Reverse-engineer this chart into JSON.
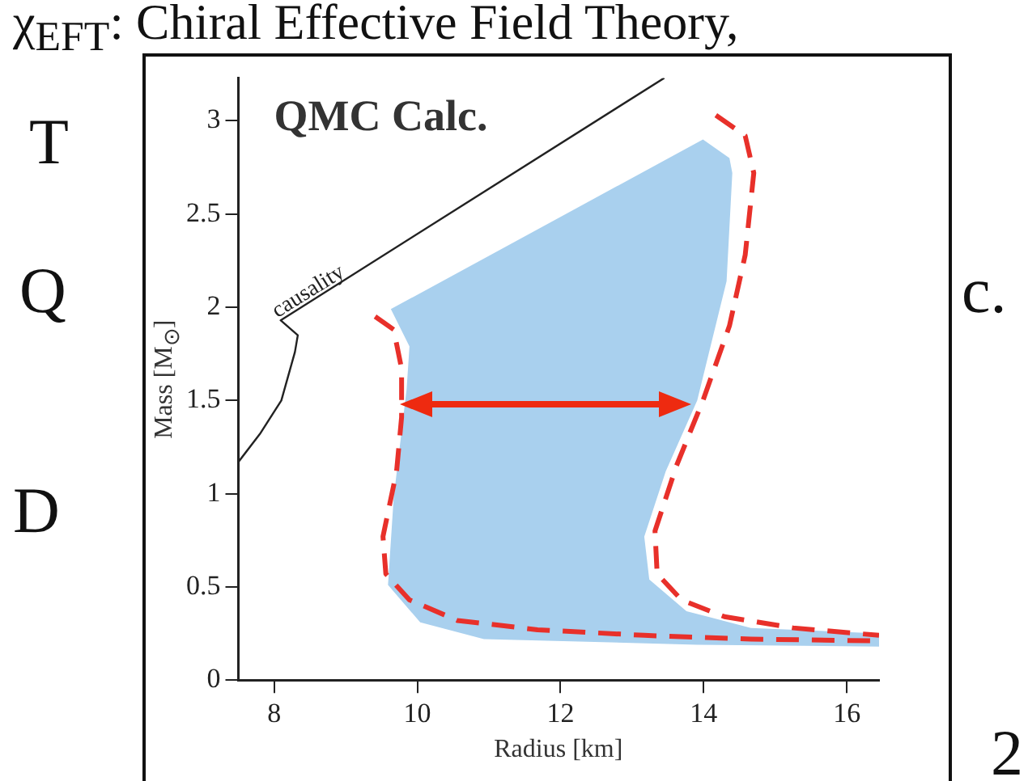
{
  "chart_data": {
    "type": "line",
    "title": "QMC Calc.",
    "xlabel": "Radius [km]",
    "ylabel": "Mass [M$_{⊙}$]",
    "xlim": [
      7.5,
      16.45
    ],
    "xticks": [
      8,
      10,
      12,
      14,
      16
    ],
    "ylim": [
      0,
      3.23
    ],
    "yticks": [
      0,
      0.5,
      1,
      1.5,
      2,
      2.5,
      3
    ],
    "grid": false,
    "legend": false,
    "marker": "none",
    "series": [
      {
        "type": "area",
        "color": "#a9d0ee",
        "x": [
          9.63,
          13.99,
          14.36,
          14.4,
          14.32,
          13.91,
          13.47,
          13.17,
          13.24,
          13.76,
          14.66,
          16.45,
          16.45,
          13.91,
          10.93,
          10.04,
          9.59,
          9.67,
          9.85,
          9.89,
          9.63
        ],
        "values": [
          1.99,
          2.9,
          2.8,
          2.72,
          2.14,
          1.5,
          1.12,
          0.77,
          0.54,
          0.37,
          0.28,
          0.25,
          0.18,
          0.19,
          0.22,
          0.31,
          0.51,
          0.98,
          1.56,
          1.79,
          1.99
        ]
      },
      {
        "color": "#e8302a",
        "line_style": "dashed",
        "x": [
          9.41,
          9.67,
          9.78,
          9.78,
          9.71,
          9.52,
          9.56,
          9.89,
          10.56,
          11.68,
          13.17,
          14.66,
          16.45
        ],
        "values": [
          1.95,
          1.88,
          1.67,
          1.41,
          1.12,
          0.77,
          0.57,
          0.43,
          0.32,
          0.27,
          0.24,
          0.22,
          0.21
        ]
      },
      {
        "color": "#e8302a",
        "line_style": "dashed",
        "x": [
          14.17,
          14.58,
          14.7,
          14.58,
          14.36,
          13.99,
          13.62,
          13.32,
          13.35,
          13.69,
          14.29,
          15.25,
          16.45
        ],
        "values": [
          3.03,
          2.92,
          2.72,
          2.28,
          1.9,
          1.5,
          1.15,
          0.8,
          0.57,
          0.43,
          0.34,
          0.28,
          0.24
        ]
      },
      {
        "color": "#222222",
        "line_style": "solid",
        "x": [
          7.5,
          7.8,
          8.1,
          8.29,
          8.33,
          8.09,
          13.45
        ],
        "values": [
          1.17,
          1.32,
          1.5,
          1.76,
          1.85,
          1.93,
          3.23
        ]
      }
    ],
    "annotations": [
      "χ$_{EFT}$: Chiral Effective Field Theory,",
      "T",
      "Q",
      "c.",
      "D",
      "2",
      "causality"
    ]
  }
}
